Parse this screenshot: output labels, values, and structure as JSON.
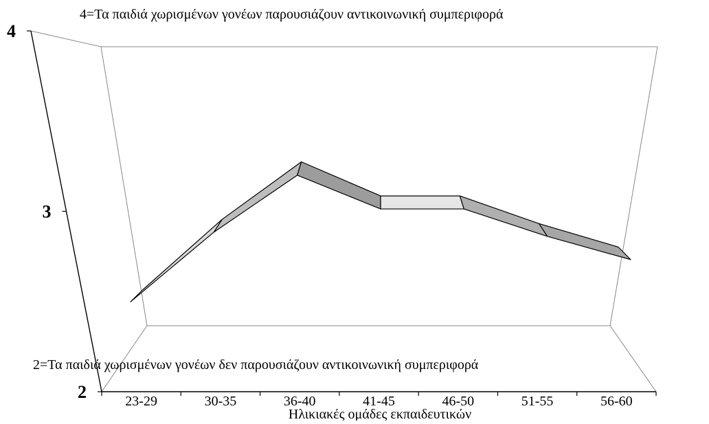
{
  "chart_data": {
    "type": "line",
    "style": "3d-ribbon",
    "title": "",
    "xlabel": "Ηλικιακές ομάδες εκπαιδευτικών",
    "ylabel": "",
    "categories": [
      "23-29",
      "30-35",
      "36-40",
      "41-45",
      "46-50",
      "51-55",
      "56-60"
    ],
    "series": [
      {
        "values": [
          2.55,
          2.88,
          3.15,
          2.99,
          2.99,
          2.86,
          2.75
        ]
      }
    ],
    "ylim": [
      2,
      4
    ],
    "yticks": [
      "2",
      "3",
      "4"
    ],
    "annotations": {
      "top": "4=Τα παιδιά χωρισμένων γονέων παρουσιάζουν αντικοινωνική συμπεριφορά",
      "bottom": "2=Τα παιδιά χωρισμένων γονέων δεν παρουσιάζουν αντικοινωνική συμπεριφορά"
    },
    "grid": false,
    "legend": "none"
  }
}
